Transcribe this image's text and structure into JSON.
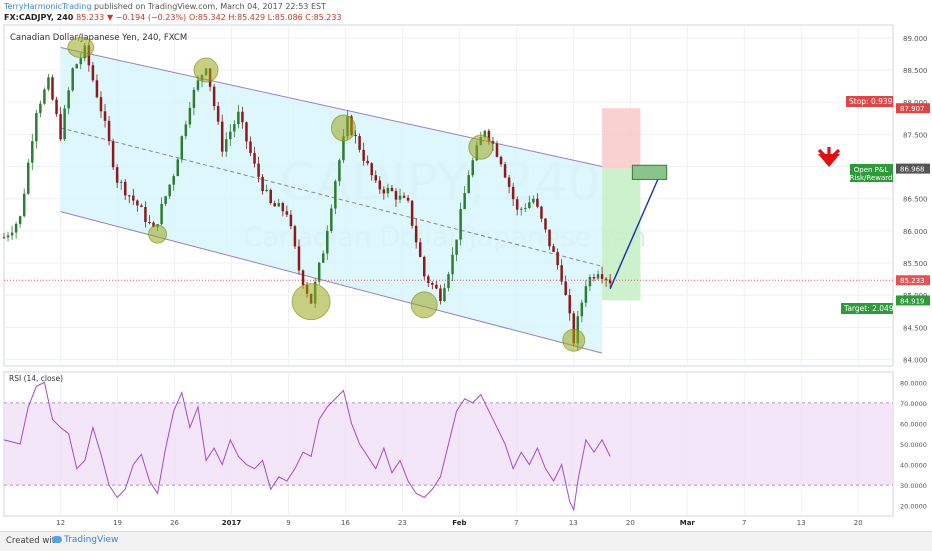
{
  "header": {
    "author": "TerryHarmonicTrading",
    "published": "published on TradingView.com, March 04, 2017 22:53 EST",
    "symbol": "FX:CADJPY, 240",
    "last": "85.233",
    "change": "▼ −0.194 (−0.23%)",
    "ohlc": "O:85.342 H:85.429 L:85.086 C:85.233"
  },
  "chart_data": {
    "type": "candlestick",
    "title": "Canadian Dollar/Japanese Yen, 240, FXCM",
    "watermark_main": "CADJPY, 240",
    "watermark_sub": "Canadian Dollar/Japanese Yen",
    "ylim": [
      83.9,
      89.2
    ],
    "y_ticks": [
      "89.000",
      "88.500",
      "88.000",
      "87.500",
      "87.000",
      "86.500",
      "86.000",
      "85.500",
      "85.000",
      "84.500",
      "84.000"
    ],
    "x_ticks": [
      "12",
      "19",
      "26",
      "2017",
      "9",
      "16",
      "23",
      "Feb",
      "7",
      "13",
      "20",
      "Mar",
      "7",
      "13",
      "20"
    ],
    "last_price": "85.233",
    "price_path": [
      {
        "t": 0,
        "v": 85.9
      },
      {
        "t": 4,
        "v": 86.2
      },
      {
        "t": 8,
        "v": 87.9
      },
      {
        "t": 11,
        "v": 88.3
      },
      {
        "t": 14,
        "v": 87.5
      },
      {
        "t": 17,
        "v": 88.5
      },
      {
        "t": 20,
        "v": 88.8
      },
      {
        "t": 24,
        "v": 87.9
      },
      {
        "t": 28,
        "v": 86.8
      },
      {
        "t": 33,
        "v": 86.4
      },
      {
        "t": 37,
        "v": 86.0
      },
      {
        "t": 42,
        "v": 86.9
      },
      {
        "t": 46,
        "v": 88.0
      },
      {
        "t": 50,
        "v": 88.6
      },
      {
        "t": 54,
        "v": 87.3
      },
      {
        "t": 58,
        "v": 87.8
      },
      {
        "t": 62,
        "v": 87.0
      },
      {
        "t": 66,
        "v": 86.4
      },
      {
        "t": 70,
        "v": 86.3
      },
      {
        "t": 73,
        "v": 85.4
      },
      {
        "t": 76,
        "v": 84.9
      },
      {
        "t": 79,
        "v": 85.7
      },
      {
        "t": 82,
        "v": 86.8
      },
      {
        "t": 85,
        "v": 87.7
      },
      {
        "t": 88,
        "v": 87.3
      },
      {
        "t": 92,
        "v": 86.7
      },
      {
        "t": 96,
        "v": 86.6
      },
      {
        "t": 100,
        "v": 86.4
      },
      {
        "t": 104,
        "v": 85.3
      },
      {
        "t": 108,
        "v": 85.0
      },
      {
        "t": 111,
        "v": 85.6
      },
      {
        "t": 115,
        "v": 86.9
      },
      {
        "t": 119,
        "v": 87.6
      },
      {
        "t": 123,
        "v": 87.1
      },
      {
        "t": 127,
        "v": 86.3
      },
      {
        "t": 131,
        "v": 86.5
      },
      {
        "t": 135,
        "v": 85.8
      },
      {
        "t": 138,
        "v": 85.3
      },
      {
        "t": 141,
        "v": 84.3
      },
      {
        "t": 144,
        "v": 85.2
      },
      {
        "t": 147,
        "v": 85.4
      },
      {
        "t": 150,
        "v": 85.233
      }
    ],
    "rsi": {
      "label": "RSI (14, close)",
      "ylim": [
        15,
        85
      ],
      "y_ticks": [
        "80.0000",
        "70.0000",
        "60.0000",
        "50.0000",
        "40.0000",
        "30.0000",
        "20.0000"
      ],
      "band": [
        30,
        70
      ],
      "values": [
        [
          0,
          52
        ],
        [
          4,
          50
        ],
        [
          6,
          68
        ],
        [
          8,
          78
        ],
        [
          10,
          80
        ],
        [
          12,
          62
        ],
        [
          14,
          58
        ],
        [
          16,
          55
        ],
        [
          18,
          38
        ],
        [
          20,
          42
        ],
        [
          22,
          58
        ],
        [
          24,
          45
        ],
        [
          26,
          30
        ],
        [
          28,
          24
        ],
        [
          30,
          28
        ],
        [
          32,
          40
        ],
        [
          34,
          45
        ],
        [
          36,
          32
        ],
        [
          38,
          26
        ],
        [
          40,
          48
        ],
        [
          42,
          66
        ],
        [
          44,
          75
        ],
        [
          46,
          58
        ],
        [
          48,
          68
        ],
        [
          50,
          42
        ],
        [
          52,
          48
        ],
        [
          54,
          40
        ],
        [
          56,
          52
        ],
        [
          58,
          44
        ],
        [
          60,
          40
        ],
        [
          62,
          38
        ],
        [
          64,
          42
        ],
        [
          66,
          28
        ],
        [
          68,
          34
        ],
        [
          70,
          32
        ],
        [
          72,
          38
        ],
        [
          74,
          46
        ],
        [
          76,
          44
        ],
        [
          78,
          62
        ],
        [
          80,
          68
        ],
        [
          82,
          72
        ],
        [
          84,
          76
        ],
        [
          86,
          60
        ],
        [
          88,
          50
        ],
        [
          90,
          44
        ],
        [
          92,
          38
        ],
        [
          94,
          48
        ],
        [
          96,
          36
        ],
        [
          98,
          42
        ],
        [
          100,
          32
        ],
        [
          102,
          26
        ],
        [
          104,
          24
        ],
        [
          106,
          28
        ],
        [
          108,
          34
        ],
        [
          110,
          50
        ],
        [
          112,
          66
        ],
        [
          114,
          72
        ],
        [
          116,
          70
        ],
        [
          118,
          74
        ],
        [
          120,
          66
        ],
        [
          122,
          58
        ],
        [
          124,
          50
        ],
        [
          126,
          38
        ],
        [
          128,
          46
        ],
        [
          130,
          40
        ],
        [
          132,
          48
        ],
        [
          134,
          38
        ],
        [
          136,
          32
        ],
        [
          138,
          40
        ],
        [
          140,
          22
        ],
        [
          141,
          18
        ],
        [
          142,
          32
        ],
        [
          144,
          52
        ],
        [
          146,
          46
        ],
        [
          148,
          52
        ],
        [
          150,
          44
        ]
      ]
    },
    "annotations": {
      "stop_label": "Stop: 0.939 (",
      "stop_level": "87.907",
      "entry_level": "86.968",
      "target_label": "Target: 2.049 (",
      "target_level": "84.919",
      "pnl_label_1": "Open P&L",
      "pnl_label_2": "Risk/Reward"
    },
    "series": [
      {
        "name": "CADJPY"
      }
    ]
  },
  "colors": {
    "channel_fill": "#d6f5fb",
    "channel_line": "#9b7fc4",
    "circle_fill": "#9aa81e",
    "bull": "#2e7d32",
    "bear": "#8b1a1a",
    "rsi_line": "#a64ac9",
    "rsi_band": "#f0dcf7",
    "stop_zone": "#f8c6c6",
    "target_zone": "#c8eec8",
    "projection": "#1b2fa8",
    "arrow": "#e01010",
    "last_price": "#e25555"
  },
  "footer": {
    "created": "Created with",
    "brand": "TradingView"
  }
}
